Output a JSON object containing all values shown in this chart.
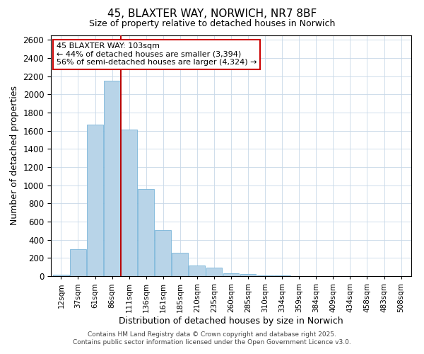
{
  "title": "45, BLAXTER WAY, NORWICH, NR7 8BF",
  "subtitle": "Size of property relative to detached houses in Norwich",
  "xlabel": "Distribution of detached houses by size in Norwich",
  "ylabel": "Number of detached properties",
  "categories": [
    "12sqm",
    "37sqm",
    "61sqm",
    "86sqm",
    "111sqm",
    "136sqm",
    "161sqm",
    "185sqm",
    "210sqm",
    "235sqm",
    "260sqm",
    "285sqm",
    "310sqm",
    "334sqm",
    "359sqm",
    "384sqm",
    "409sqm",
    "434sqm",
    "458sqm",
    "483sqm",
    "508sqm"
  ],
  "bar_heights": [
    18,
    295,
    1670,
    2150,
    1610,
    960,
    510,
    255,
    115,
    95,
    35,
    25,
    10,
    5,
    2,
    1,
    0,
    0,
    0,
    0,
    0
  ],
  "bar_color": "#b8d4e8",
  "bar_edge_color": "#7ab5d9",
  "grid_color": "#c8d8e8",
  "vline_x": 3.5,
  "vline_color": "#bb0000",
  "annotation_title": "45 BLAXTER WAY: 103sqm",
  "annotation_line1": "← 44% of detached houses are smaller (3,394)",
  "annotation_line2": "56% of semi-detached houses are larger (4,324) →",
  "annotation_box_color": "#ffffff",
  "annotation_border_color": "#cc0000",
  "ylim": [
    0,
    2650
  ],
  "yticks": [
    0,
    200,
    400,
    600,
    800,
    1000,
    1200,
    1400,
    1600,
    1800,
    2000,
    2200,
    2400,
    2600
  ],
  "footnote1": "Contains HM Land Registry data © Crown copyright and database right 2025.",
  "footnote2": "Contains public sector information licensed under the Open Government Licence v3.0.",
  "background_color": "#ffffff",
  "figsize": [
    6.0,
    5.0
  ],
  "dpi": 100
}
